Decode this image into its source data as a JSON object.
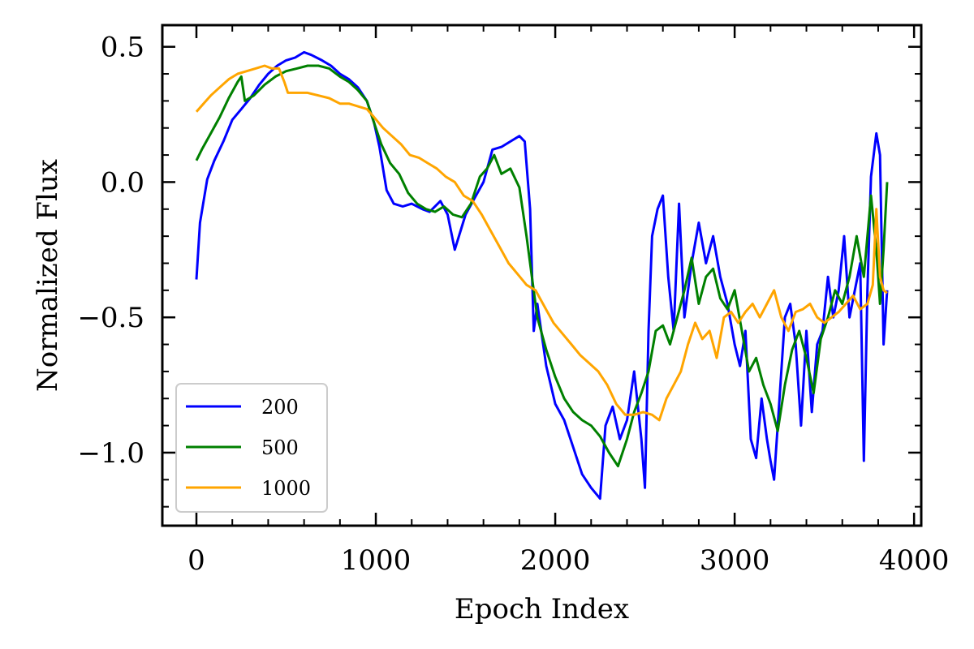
{
  "chart_data": {
    "type": "line",
    "title": "",
    "xlabel": "Epoch Index",
    "ylabel": "Normalized Flux",
    "xlim": [
      -190,
      4040
    ],
    "ylim": [
      -1.27,
      0.58
    ],
    "x_ticks": [
      0,
      1000,
      2000,
      3000,
      4000
    ],
    "x_tick_labels": [
      "0",
      "1000",
      "2000",
      "3000",
      "4000"
    ],
    "y_ticks": [
      0.5,
      0.0,
      -0.5,
      -1.0
    ],
    "y_tick_labels": [
      "0.5",
      "0.0",
      "−0.5",
      "−1.0"
    ],
    "grid": false,
    "legend_position": "lower-left",
    "series": [
      {
        "name": "200",
        "color": "#0000ff",
        "points": [
          [
            0,
            -0.36
          ],
          [
            20,
            -0.15
          ],
          [
            60,
            0.01
          ],
          [
            100,
            0.08
          ],
          [
            150,
            0.15
          ],
          [
            200,
            0.23
          ],
          [
            250,
            0.27
          ],
          [
            300,
            0.31
          ],
          [
            350,
            0.36
          ],
          [
            400,
            0.4
          ],
          [
            450,
            0.43
          ],
          [
            500,
            0.45
          ],
          [
            550,
            0.46
          ],
          [
            600,
            0.48
          ],
          [
            640,
            0.47
          ],
          [
            700,
            0.45
          ],
          [
            750,
            0.43
          ],
          [
            800,
            0.4
          ],
          [
            850,
            0.38
          ],
          [
            900,
            0.35
          ],
          [
            950,
            0.3
          ],
          [
            990,
            0.22
          ],
          [
            1020,
            0.13
          ],
          [
            1060,
            -0.03
          ],
          [
            1100,
            -0.08
          ],
          [
            1150,
            -0.09
          ],
          [
            1200,
            -0.08
          ],
          [
            1260,
            -0.1
          ],
          [
            1300,
            -0.11
          ],
          [
            1360,
            -0.07
          ],
          [
            1400,
            -0.12
          ],
          [
            1440,
            -0.25
          ],
          [
            1500,
            -0.12
          ],
          [
            1550,
            -0.06
          ],
          [
            1600,
            0.0
          ],
          [
            1650,
            0.12
          ],
          [
            1700,
            0.13
          ],
          [
            1750,
            0.15
          ],
          [
            1800,
            0.17
          ],
          [
            1830,
            0.15
          ],
          [
            1860,
            -0.1
          ],
          [
            1880,
            -0.55
          ],
          [
            1900,
            -0.45
          ],
          [
            1950,
            -0.68
          ],
          [
            2000,
            -0.82
          ],
          [
            2050,
            -0.88
          ],
          [
            2100,
            -0.98
          ],
          [
            2150,
            -1.08
          ],
          [
            2200,
            -1.13
          ],
          [
            2250,
            -1.17
          ],
          [
            2280,
            -0.9
          ],
          [
            2320,
            -0.83
          ],
          [
            2360,
            -0.95
          ],
          [
            2400,
            -0.88
          ],
          [
            2440,
            -0.7
          ],
          [
            2480,
            -0.95
          ],
          [
            2500,
            -1.13
          ],
          [
            2520,
            -0.55
          ],
          [
            2540,
            -0.2
          ],
          [
            2570,
            -0.1
          ],
          [
            2600,
            -0.05
          ],
          [
            2630,
            -0.35
          ],
          [
            2660,
            -0.55
          ],
          [
            2690,
            -0.08
          ],
          [
            2720,
            -0.5
          ],
          [
            2760,
            -0.3
          ],
          [
            2800,
            -0.15
          ],
          [
            2840,
            -0.3
          ],
          [
            2880,
            -0.2
          ],
          [
            2920,
            -0.35
          ],
          [
            2960,
            -0.45
          ],
          [
            3000,
            -0.6
          ],
          [
            3030,
            -0.68
          ],
          [
            3060,
            -0.55
          ],
          [
            3090,
            -0.95
          ],
          [
            3120,
            -1.02
          ],
          [
            3150,
            -0.8
          ],
          [
            3180,
            -0.95
          ],
          [
            3200,
            -1.03
          ],
          [
            3220,
            -1.1
          ],
          [
            3250,
            -0.8
          ],
          [
            3280,
            -0.5
          ],
          [
            3310,
            -0.45
          ],
          [
            3340,
            -0.6
          ],
          [
            3370,
            -0.9
          ],
          [
            3400,
            -0.55
          ],
          [
            3430,
            -0.85
          ],
          [
            3460,
            -0.6
          ],
          [
            3490,
            -0.55
          ],
          [
            3520,
            -0.35
          ],
          [
            3550,
            -0.5
          ],
          [
            3580,
            -0.4
          ],
          [
            3610,
            -0.2
          ],
          [
            3640,
            -0.5
          ],
          [
            3670,
            -0.4
          ],
          [
            3700,
            -0.3
          ],
          [
            3720,
            -1.03
          ],
          [
            3740,
            -0.4
          ],
          [
            3760,
            0.02
          ],
          [
            3790,
            0.18
          ],
          [
            3810,
            0.1
          ],
          [
            3830,
            -0.6
          ],
          [
            3850,
            -0.4
          ]
        ]
      },
      {
        "name": "500",
        "color": "#008000",
        "points": [
          [
            0,
            0.08
          ],
          [
            30,
            0.12
          ],
          [
            80,
            0.18
          ],
          [
            130,
            0.24
          ],
          [
            180,
            0.31
          ],
          [
            230,
            0.37
          ],
          [
            250,
            0.39
          ],
          [
            270,
            0.3
          ],
          [
            320,
            0.32
          ],
          [
            380,
            0.36
          ],
          [
            440,
            0.39
          ],
          [
            500,
            0.41
          ],
          [
            560,
            0.42
          ],
          [
            620,
            0.43
          ],
          [
            680,
            0.43
          ],
          [
            740,
            0.42
          ],
          [
            800,
            0.39
          ],
          [
            850,
            0.37
          ],
          [
            900,
            0.34
          ],
          [
            950,
            0.3
          ],
          [
            990,
            0.22
          ],
          [
            1030,
            0.14
          ],
          [
            1080,
            0.07
          ],
          [
            1130,
            0.03
          ],
          [
            1180,
            -0.04
          ],
          [
            1230,
            -0.08
          ],
          [
            1280,
            -0.1
          ],
          [
            1330,
            -0.11
          ],
          [
            1380,
            -0.09
          ],
          [
            1430,
            -0.12
          ],
          [
            1480,
            -0.13
          ],
          [
            1530,
            -0.08
          ],
          [
            1580,
            0.02
          ],
          [
            1620,
            0.05
          ],
          [
            1660,
            0.1
          ],
          [
            1700,
            0.03
          ],
          [
            1750,
            0.05
          ],
          [
            1800,
            -0.02
          ],
          [
            1840,
            -0.2
          ],
          [
            1870,
            -0.35
          ],
          [
            1900,
            -0.5
          ],
          [
            1950,
            -0.62
          ],
          [
            2000,
            -0.72
          ],
          [
            2050,
            -0.8
          ],
          [
            2100,
            -0.85
          ],
          [
            2150,
            -0.88
          ],
          [
            2200,
            -0.9
          ],
          [
            2250,
            -0.94
          ],
          [
            2300,
            -1.0
          ],
          [
            2350,
            -1.05
          ],
          [
            2400,
            -0.95
          ],
          [
            2440,
            -0.85
          ],
          [
            2480,
            -0.78
          ],
          [
            2520,
            -0.7
          ],
          [
            2560,
            -0.55
          ],
          [
            2600,
            -0.53
          ],
          [
            2640,
            -0.6
          ],
          [
            2680,
            -0.5
          ],
          [
            2720,
            -0.4
          ],
          [
            2760,
            -0.28
          ],
          [
            2800,
            -0.45
          ],
          [
            2840,
            -0.35
          ],
          [
            2880,
            -0.32
          ],
          [
            2920,
            -0.43
          ],
          [
            2960,
            -0.47
          ],
          [
            3000,
            -0.4
          ],
          [
            3040,
            -0.55
          ],
          [
            3080,
            -0.7
          ],
          [
            3120,
            -0.65
          ],
          [
            3160,
            -0.75
          ],
          [
            3200,
            -0.82
          ],
          [
            3240,
            -0.92
          ],
          [
            3280,
            -0.75
          ],
          [
            3320,
            -0.62
          ],
          [
            3360,
            -0.55
          ],
          [
            3400,
            -0.65
          ],
          [
            3440,
            -0.78
          ],
          [
            3480,
            -0.58
          ],
          [
            3520,
            -0.5
          ],
          [
            3560,
            -0.4
          ],
          [
            3600,
            -0.45
          ],
          [
            3640,
            -0.35
          ],
          [
            3680,
            -0.2
          ],
          [
            3720,
            -0.35
          ],
          [
            3760,
            -0.05
          ],
          [
            3790,
            -0.25
          ],
          [
            3810,
            -0.45
          ],
          [
            3830,
            -0.25
          ],
          [
            3850,
            0.0
          ]
        ]
      },
      {
        "name": "1000",
        "color": "#ffa500",
        "points": [
          [
            0,
            0.26
          ],
          [
            40,
            0.29
          ],
          [
            80,
            0.32
          ],
          [
            130,
            0.35
          ],
          [
            180,
            0.38
          ],
          [
            230,
            0.4
          ],
          [
            280,
            0.41
          ],
          [
            330,
            0.42
          ],
          [
            380,
            0.43
          ],
          [
            420,
            0.42
          ],
          [
            460,
            0.42
          ],
          [
            490,
            0.37
          ],
          [
            510,
            0.33
          ],
          [
            560,
            0.33
          ],
          [
            620,
            0.33
          ],
          [
            680,
            0.32
          ],
          [
            740,
            0.31
          ],
          [
            800,
            0.29
          ],
          [
            850,
            0.29
          ],
          [
            900,
            0.28
          ],
          [
            950,
            0.27
          ],
          [
            990,
            0.24
          ],
          [
            1040,
            0.2
          ],
          [
            1090,
            0.17
          ],
          [
            1140,
            0.14
          ],
          [
            1190,
            0.1
          ],
          [
            1240,
            0.09
          ],
          [
            1290,
            0.07
          ],
          [
            1340,
            0.05
          ],
          [
            1390,
            0.02
          ],
          [
            1440,
            0.0
          ],
          [
            1490,
            -0.05
          ],
          [
            1540,
            -0.07
          ],
          [
            1590,
            -0.12
          ],
          [
            1640,
            -0.18
          ],
          [
            1690,
            -0.24
          ],
          [
            1740,
            -0.3
          ],
          [
            1790,
            -0.34
          ],
          [
            1840,
            -0.38
          ],
          [
            1890,
            -0.4
          ],
          [
            1940,
            -0.46
          ],
          [
            1990,
            -0.52
          ],
          [
            2040,
            -0.56
          ],
          [
            2090,
            -0.6
          ],
          [
            2140,
            -0.64
          ],
          [
            2190,
            -0.67
          ],
          [
            2240,
            -0.7
          ],
          [
            2290,
            -0.75
          ],
          [
            2340,
            -0.82
          ],
          [
            2390,
            -0.86
          ],
          [
            2440,
            -0.86
          ],
          [
            2490,
            -0.85
          ],
          [
            2540,
            -0.86
          ],
          [
            2580,
            -0.88
          ],
          [
            2620,
            -0.8
          ],
          [
            2660,
            -0.75
          ],
          [
            2700,
            -0.7
          ],
          [
            2740,
            -0.6
          ],
          [
            2780,
            -0.52
          ],
          [
            2820,
            -0.58
          ],
          [
            2860,
            -0.55
          ],
          [
            2900,
            -0.65
          ],
          [
            2940,
            -0.5
          ],
          [
            2980,
            -0.48
          ],
          [
            3020,
            -0.52
          ],
          [
            3060,
            -0.48
          ],
          [
            3100,
            -0.45
          ],
          [
            3140,
            -0.5
          ],
          [
            3180,
            -0.45
          ],
          [
            3220,
            -0.4
          ],
          [
            3260,
            -0.5
          ],
          [
            3300,
            -0.55
          ],
          [
            3340,
            -0.48
          ],
          [
            3380,
            -0.47
          ],
          [
            3420,
            -0.45
          ],
          [
            3460,
            -0.5
          ],
          [
            3500,
            -0.52
          ],
          [
            3540,
            -0.5
          ],
          [
            3580,
            -0.48
          ],
          [
            3620,
            -0.45
          ],
          [
            3660,
            -0.42
          ],
          [
            3700,
            -0.47
          ],
          [
            3740,
            -0.45
          ],
          [
            3770,
            -0.38
          ],
          [
            3790,
            -0.1
          ],
          [
            3810,
            -0.35
          ],
          [
            3830,
            -0.4
          ],
          [
            3850,
            -0.41
          ]
        ]
      }
    ]
  }
}
